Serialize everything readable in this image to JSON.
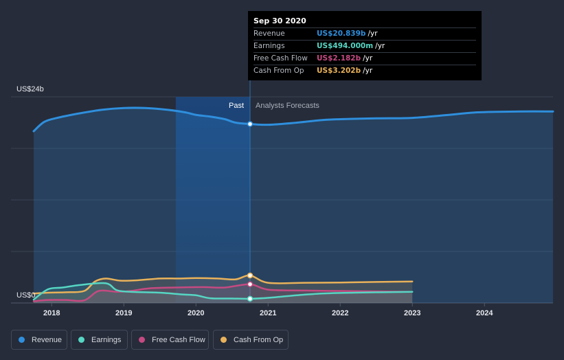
{
  "chart_data": {
    "type": "area",
    "title": "",
    "ylabel_top": "US$24b",
    "ylabel_bottom": "US$0",
    "ylim": [
      0,
      24
    ],
    "xlim": [
      2017.75,
      2024.95
    ],
    "x_ticks": [
      "2018",
      "2019",
      "2020",
      "2021",
      "2022",
      "2023",
      "2024"
    ],
    "divider_x": 2020.75,
    "forecast_shade_from": 2019.72,
    "past_label": "Past",
    "forecast_label": "Analysts Forecasts",
    "series": [
      {
        "name": "Revenue",
        "color": "#2f8fdd",
        "points": [
          [
            2017.75,
            20.0
          ],
          [
            2017.9,
            21.1
          ],
          [
            2018.1,
            21.6
          ],
          [
            2018.4,
            22.1
          ],
          [
            2018.7,
            22.5
          ],
          [
            2019.0,
            22.7
          ],
          [
            2019.3,
            22.7
          ],
          [
            2019.6,
            22.5
          ],
          [
            2019.85,
            22.2
          ],
          [
            2020.0,
            21.9
          ],
          [
            2020.2,
            21.7
          ],
          [
            2020.4,
            21.4
          ],
          [
            2020.55,
            21.0
          ],
          [
            2020.75,
            20.839
          ],
          [
            2021.0,
            20.75
          ],
          [
            2021.4,
            21.0
          ],
          [
            2021.75,
            21.3
          ],
          [
            2022.0,
            21.4
          ],
          [
            2022.5,
            21.5
          ],
          [
            2023.0,
            21.55
          ],
          [
            2023.5,
            21.9
          ],
          [
            2023.9,
            22.2
          ],
          [
            2024.5,
            22.3
          ],
          [
            2024.95,
            22.3
          ]
        ]
      },
      {
        "name": "Earnings",
        "color": "#56d6c4",
        "points": [
          [
            2017.75,
            0.4
          ],
          [
            2017.95,
            1.6
          ],
          [
            2018.15,
            1.8
          ],
          [
            2018.4,
            2.1
          ],
          [
            2018.75,
            2.3
          ],
          [
            2018.9,
            1.5
          ],
          [
            2019.1,
            1.3
          ],
          [
            2019.5,
            1.2
          ],
          [
            2019.8,
            1.0
          ],
          [
            2020.0,
            0.9
          ],
          [
            2020.2,
            0.55
          ],
          [
            2020.5,
            0.52
          ],
          [
            2020.75,
            0.494
          ],
          [
            2021.0,
            0.6
          ],
          [
            2021.4,
            0.9
          ],
          [
            2021.75,
            1.1
          ],
          [
            2022.2,
            1.2
          ],
          [
            2022.6,
            1.25
          ],
          [
            2023.0,
            1.3
          ]
        ]
      },
      {
        "name": "Free Cash Flow",
        "color": "#c54a82",
        "points": [
          [
            2017.75,
            0.2
          ],
          [
            2017.95,
            0.35
          ],
          [
            2018.2,
            0.35
          ],
          [
            2018.45,
            0.3
          ],
          [
            2018.65,
            1.4
          ],
          [
            2018.9,
            1.3
          ],
          [
            2019.1,
            1.4
          ],
          [
            2019.35,
            1.7
          ],
          [
            2019.7,
            1.8
          ],
          [
            2020.1,
            1.85
          ],
          [
            2020.4,
            1.8
          ],
          [
            2020.75,
            2.182
          ],
          [
            2021.0,
            1.55
          ],
          [
            2021.5,
            1.45
          ],
          [
            2022.0,
            1.4
          ],
          [
            2022.5,
            1.35
          ],
          [
            2023.0,
            1.3
          ]
        ]
      },
      {
        "name": "Cash From Op",
        "color": "#e9b25a",
        "points": [
          [
            2017.75,
            1.1
          ],
          [
            2017.95,
            1.2
          ],
          [
            2018.2,
            1.25
          ],
          [
            2018.45,
            1.4
          ],
          [
            2018.6,
            2.5
          ],
          [
            2018.75,
            2.85
          ],
          [
            2018.95,
            2.6
          ],
          [
            2019.2,
            2.65
          ],
          [
            2019.5,
            2.85
          ],
          [
            2019.75,
            2.85
          ],
          [
            2020.0,
            2.9
          ],
          [
            2020.3,
            2.85
          ],
          [
            2020.55,
            2.75
          ],
          [
            2020.75,
            3.202
          ],
          [
            2021.0,
            2.35
          ],
          [
            2021.5,
            2.35
          ],
          [
            2022.0,
            2.38
          ],
          [
            2022.5,
            2.45
          ],
          [
            2023.0,
            2.5
          ]
        ]
      }
    ],
    "highlight_x": 2020.75
  },
  "tooltip": {
    "date": "Sep 30 2020",
    "rows": [
      {
        "label": "Revenue",
        "value": "US$20.839b",
        "unit": "/yr",
        "color": "#2f8fdd"
      },
      {
        "label": "Earnings",
        "value": "US$494.000m",
        "unit": "/yr",
        "color": "#56d6c4"
      },
      {
        "label": "Free Cash Flow",
        "value": "US$2.182b",
        "unit": "/yr",
        "color": "#c54a82"
      },
      {
        "label": "Cash From Op",
        "value": "US$3.202b",
        "unit": "/yr",
        "color": "#e9b25a"
      }
    ]
  },
  "legend": [
    {
      "label": "Revenue",
      "color": "#2f8fdd"
    },
    {
      "label": "Earnings",
      "color": "#56d6c4"
    },
    {
      "label": "Free Cash Flow",
      "color": "#c54a82"
    },
    {
      "label": "Cash From Op",
      "color": "#e9b25a"
    }
  ]
}
